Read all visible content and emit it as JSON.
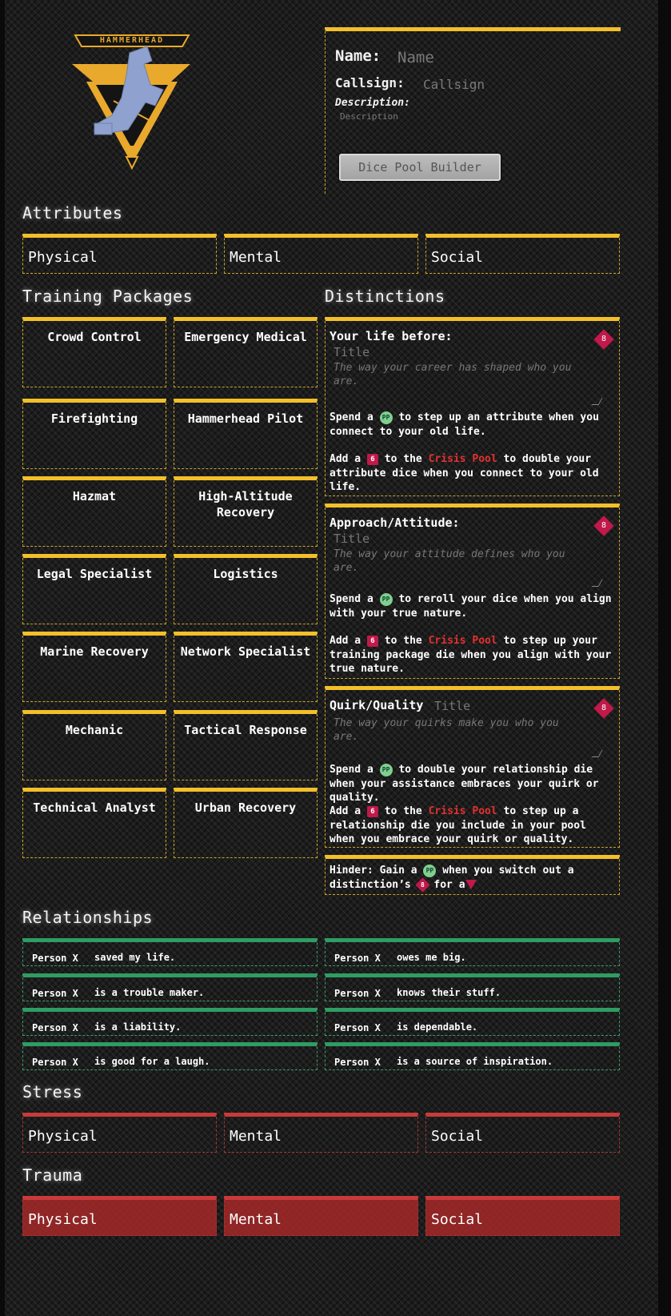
{
  "logo": {
    "text": "HAMMERHEAD"
  },
  "header": {
    "name_label": "Name:",
    "name_placeholder": "Name",
    "callsign_label": "Callsign:",
    "callsign_placeholder": "Callsign",
    "description_label": "Description:",
    "description_placeholder": "Description",
    "dice_button": "Dice Pool Builder"
  },
  "attributes": {
    "title": "Attributes",
    "items": [
      "Physical",
      "Mental",
      "Social"
    ]
  },
  "training": {
    "title": "Training Packages",
    "items": [
      "Crowd Control",
      "Emergency Medical",
      "Firefighting",
      "Hammerhead Pilot",
      "Hazmat",
      "High-Altitude Recovery",
      "Legal Specialist",
      "Logistics",
      "Marine Recovery",
      "Network Specialist",
      "Mechanic",
      "Tactical Response",
      "Technical Analyst",
      "Urban Recovery"
    ]
  },
  "distinctions": {
    "title": "Distinctions",
    "die": "8",
    "pp": "PP",
    "d6": "6",
    "crisis": "Crisis Pool",
    "items": [
      {
        "label": "Your life before:",
        "title_placeholder": "Title",
        "desc_placeholder": "The way your career has shaped who you are.",
        "spend_a": "Spend a",
        "spend_b": "to step up an attribute when you connect to your old life.",
        "add_a": "Add a",
        "add_b": "to the",
        "add_c": "to double your attribute dice when you connect to your old life."
      },
      {
        "label": "Approach/Attitude:",
        "title_placeholder": "Title",
        "desc_placeholder": "The way your attitude defines who you are.",
        "spend_a": "Spend a",
        "spend_b": "to reroll your dice when you align with your true nature.",
        "add_a": "Add a",
        "add_b": "to the",
        "add_c": "to step up your training package die when you align with your true nature."
      },
      {
        "label": "Quirk/Quality",
        "title_placeholder": "Title",
        "desc_placeholder": "The way your quirks make you who you are.",
        "spend_a": "Spend a",
        "spend_b": "to double your relationship die when your assistance embraces your quirk or quality.",
        "add_a": "Add a",
        "add_b": "to the",
        "add_c": "to step up a relationship die you include in your pool when you embrace your quirk or quality."
      }
    ],
    "hinder": {
      "a": "Hinder: Gain a",
      "b": "when you switch out a distinction’s",
      "c": "for a",
      "d8": "8",
      "d4": "4"
    }
  },
  "relationships": {
    "title": "Relationships",
    "items": [
      {
        "person": "Person X",
        "text": "saved my life."
      },
      {
        "person": "Person X",
        "text": "owes me big."
      },
      {
        "person": "Person X",
        "text": "is a trouble maker."
      },
      {
        "person": "Person X",
        "text": "knows their stuff."
      },
      {
        "person": "Person X",
        "text": "is a liability."
      },
      {
        "person": "Person X",
        "text": "is dependable."
      },
      {
        "person": "Person X",
        "text": "is good for a laugh."
      },
      {
        "person": "Person X",
        "text": "is a source of inspiration."
      }
    ]
  },
  "stress": {
    "title": "Stress",
    "items": [
      "Physical",
      "Mental",
      "Social"
    ]
  },
  "trauma": {
    "title": "Trauma",
    "items": [
      "Physical",
      "Mental",
      "Social"
    ]
  }
}
